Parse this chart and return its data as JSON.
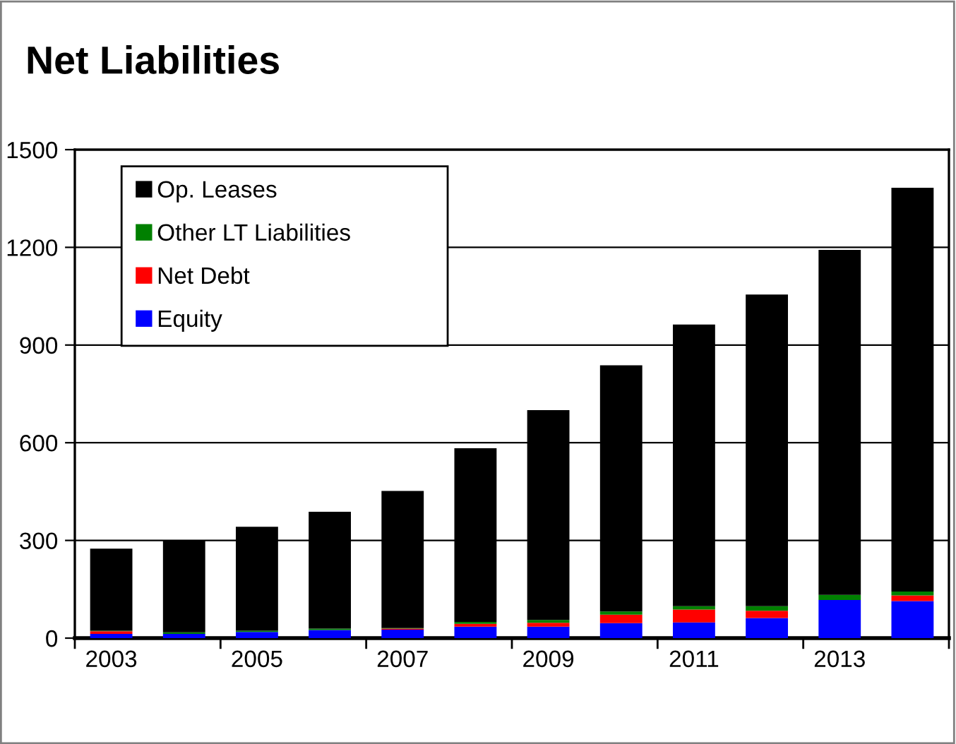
{
  "chart_data": {
    "type": "bar",
    "title": "Net Liabilities",
    "stacked": true,
    "categories": [
      "2003",
      null,
      "2005",
      null,
      "2007",
      null,
      "2009",
      null,
      "2011",
      null,
      "2013",
      null
    ],
    "series": [
      {
        "name": "Equity",
        "color": "#0000ff",
        "values": [
          13,
          13,
          19,
          25,
          26,
          35,
          35,
          46,
          48,
          62,
          117,
          114
        ]
      },
      {
        "name": "Net Debt",
        "color": "#ff0000",
        "values": [
          8,
          0,
          0,
          null,
          3,
          9,
          12,
          26,
          40,
          22,
          0,
          17
        ]
      },
      {
        "name": "Other LT Liabilities",
        "color": "#008000",
        "values": [
          2,
          5,
          4,
          4,
          2,
          6,
          9,
          10,
          10,
          14,
          16,
          12
        ]
      },
      {
        "name": "Op. Leases",
        "color": "#000000",
        "values": [
          252,
          282,
          319,
          359,
          421,
          533,
          644,
          756,
          865,
          957,
          1059,
          1240
        ]
      }
    ],
    "ylim": [
      0,
      1500
    ],
    "yticks": [
      0,
      300,
      600,
      900,
      1200,
      1500
    ],
    "grid": "y",
    "legend": "top left"
  }
}
